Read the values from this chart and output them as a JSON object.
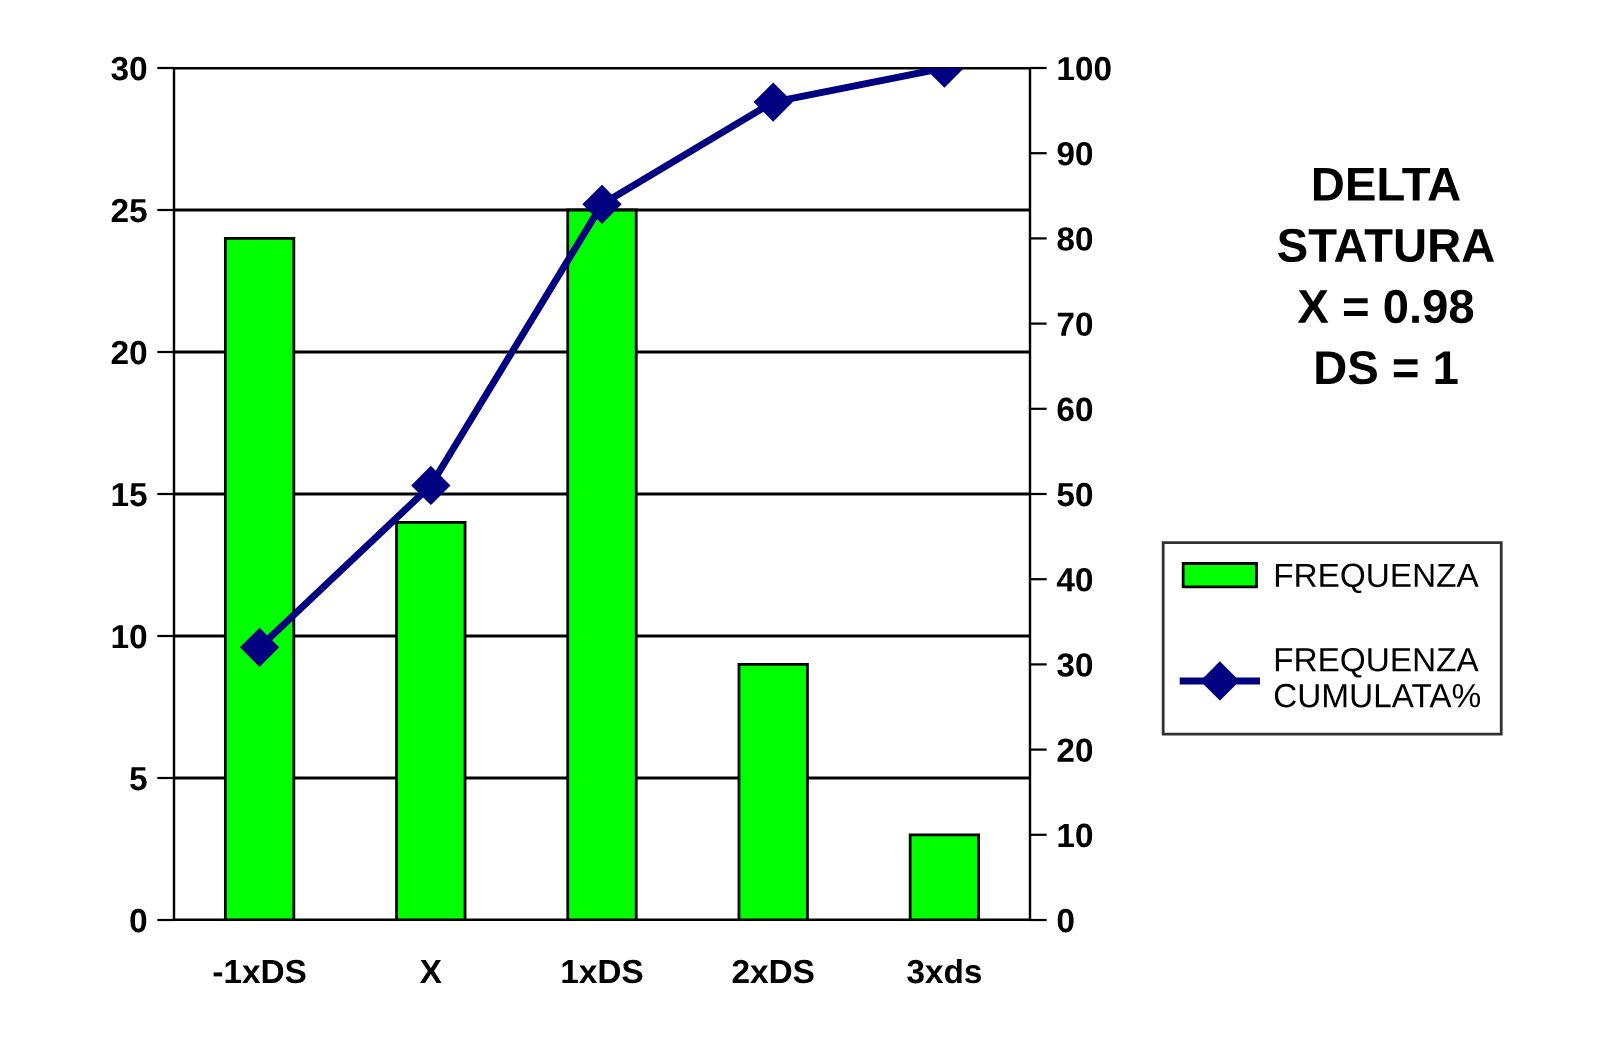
{
  "chart_data": {
    "type": "bar",
    "title": "DELTA\nSTATURA\nX = 0.98\nDS = 1",
    "categories": [
      "-1xDS",
      "X",
      "1xDS",
      "2xDS",
      "3xds"
    ],
    "series": [
      {
        "name": "FREQUENZA",
        "color": "#00ff00",
        "values": [
          24,
          14,
          25,
          9,
          3
        ]
      },
      {
        "name": "FREQUENZA\nCUMULATA%",
        "type": "line",
        "axis": "y2",
        "color": "#000080",
        "values": [
          32,
          51,
          84,
          96,
          100
        ]
      }
    ],
    "ylim": [
      0,
      30
    ],
    "yticks": [
      0,
      5,
      10,
      15,
      20,
      25,
      30
    ],
    "y2lim": [
      0,
      100
    ],
    "y2ticks": [
      0,
      10,
      20,
      30,
      40,
      50,
      60,
      70,
      80,
      90,
      100
    ],
    "grid": "y",
    "legend": "right",
    "marker": "diamond",
    "line_style": "solid"
  }
}
